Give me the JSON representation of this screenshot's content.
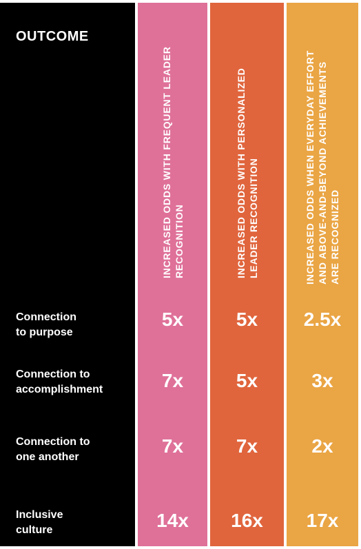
{
  "chart_data": {
    "type": "table",
    "title": "OUTCOME",
    "columns": [
      {
        "label": "INCREASED ODDS WITH FREQUENT LEADER RECOGNITION",
        "color": "#df7199"
      },
      {
        "label": "INCREASED ODDS WITH PERSONALIZED LEADER RECOGNITION",
        "color": "#e0653d"
      },
      {
        "label": "INCREASED ODDS WHEN EVERYDAY EFFORT AND ABOVE-AND-BEYOND ACHIEVEMENTS ARE RECOGNIZED",
        "color": "#eaa544"
      }
    ],
    "rows": [
      {
        "label": "Connection\nto purpose",
        "values": [
          "5x",
          "5x",
          "2.5x"
        ]
      },
      {
        "label": "Connection to\naccomplishment",
        "values": [
          "7x",
          "5x",
          "3x"
        ]
      },
      {
        "label": "Connection to\none another",
        "values": [
          "7x",
          "7x",
          "2x"
        ]
      },
      {
        "label": "Inclusive\nculture",
        "values": [
          "14x",
          "16x",
          "17x"
        ]
      }
    ],
    "background": "#000000"
  }
}
